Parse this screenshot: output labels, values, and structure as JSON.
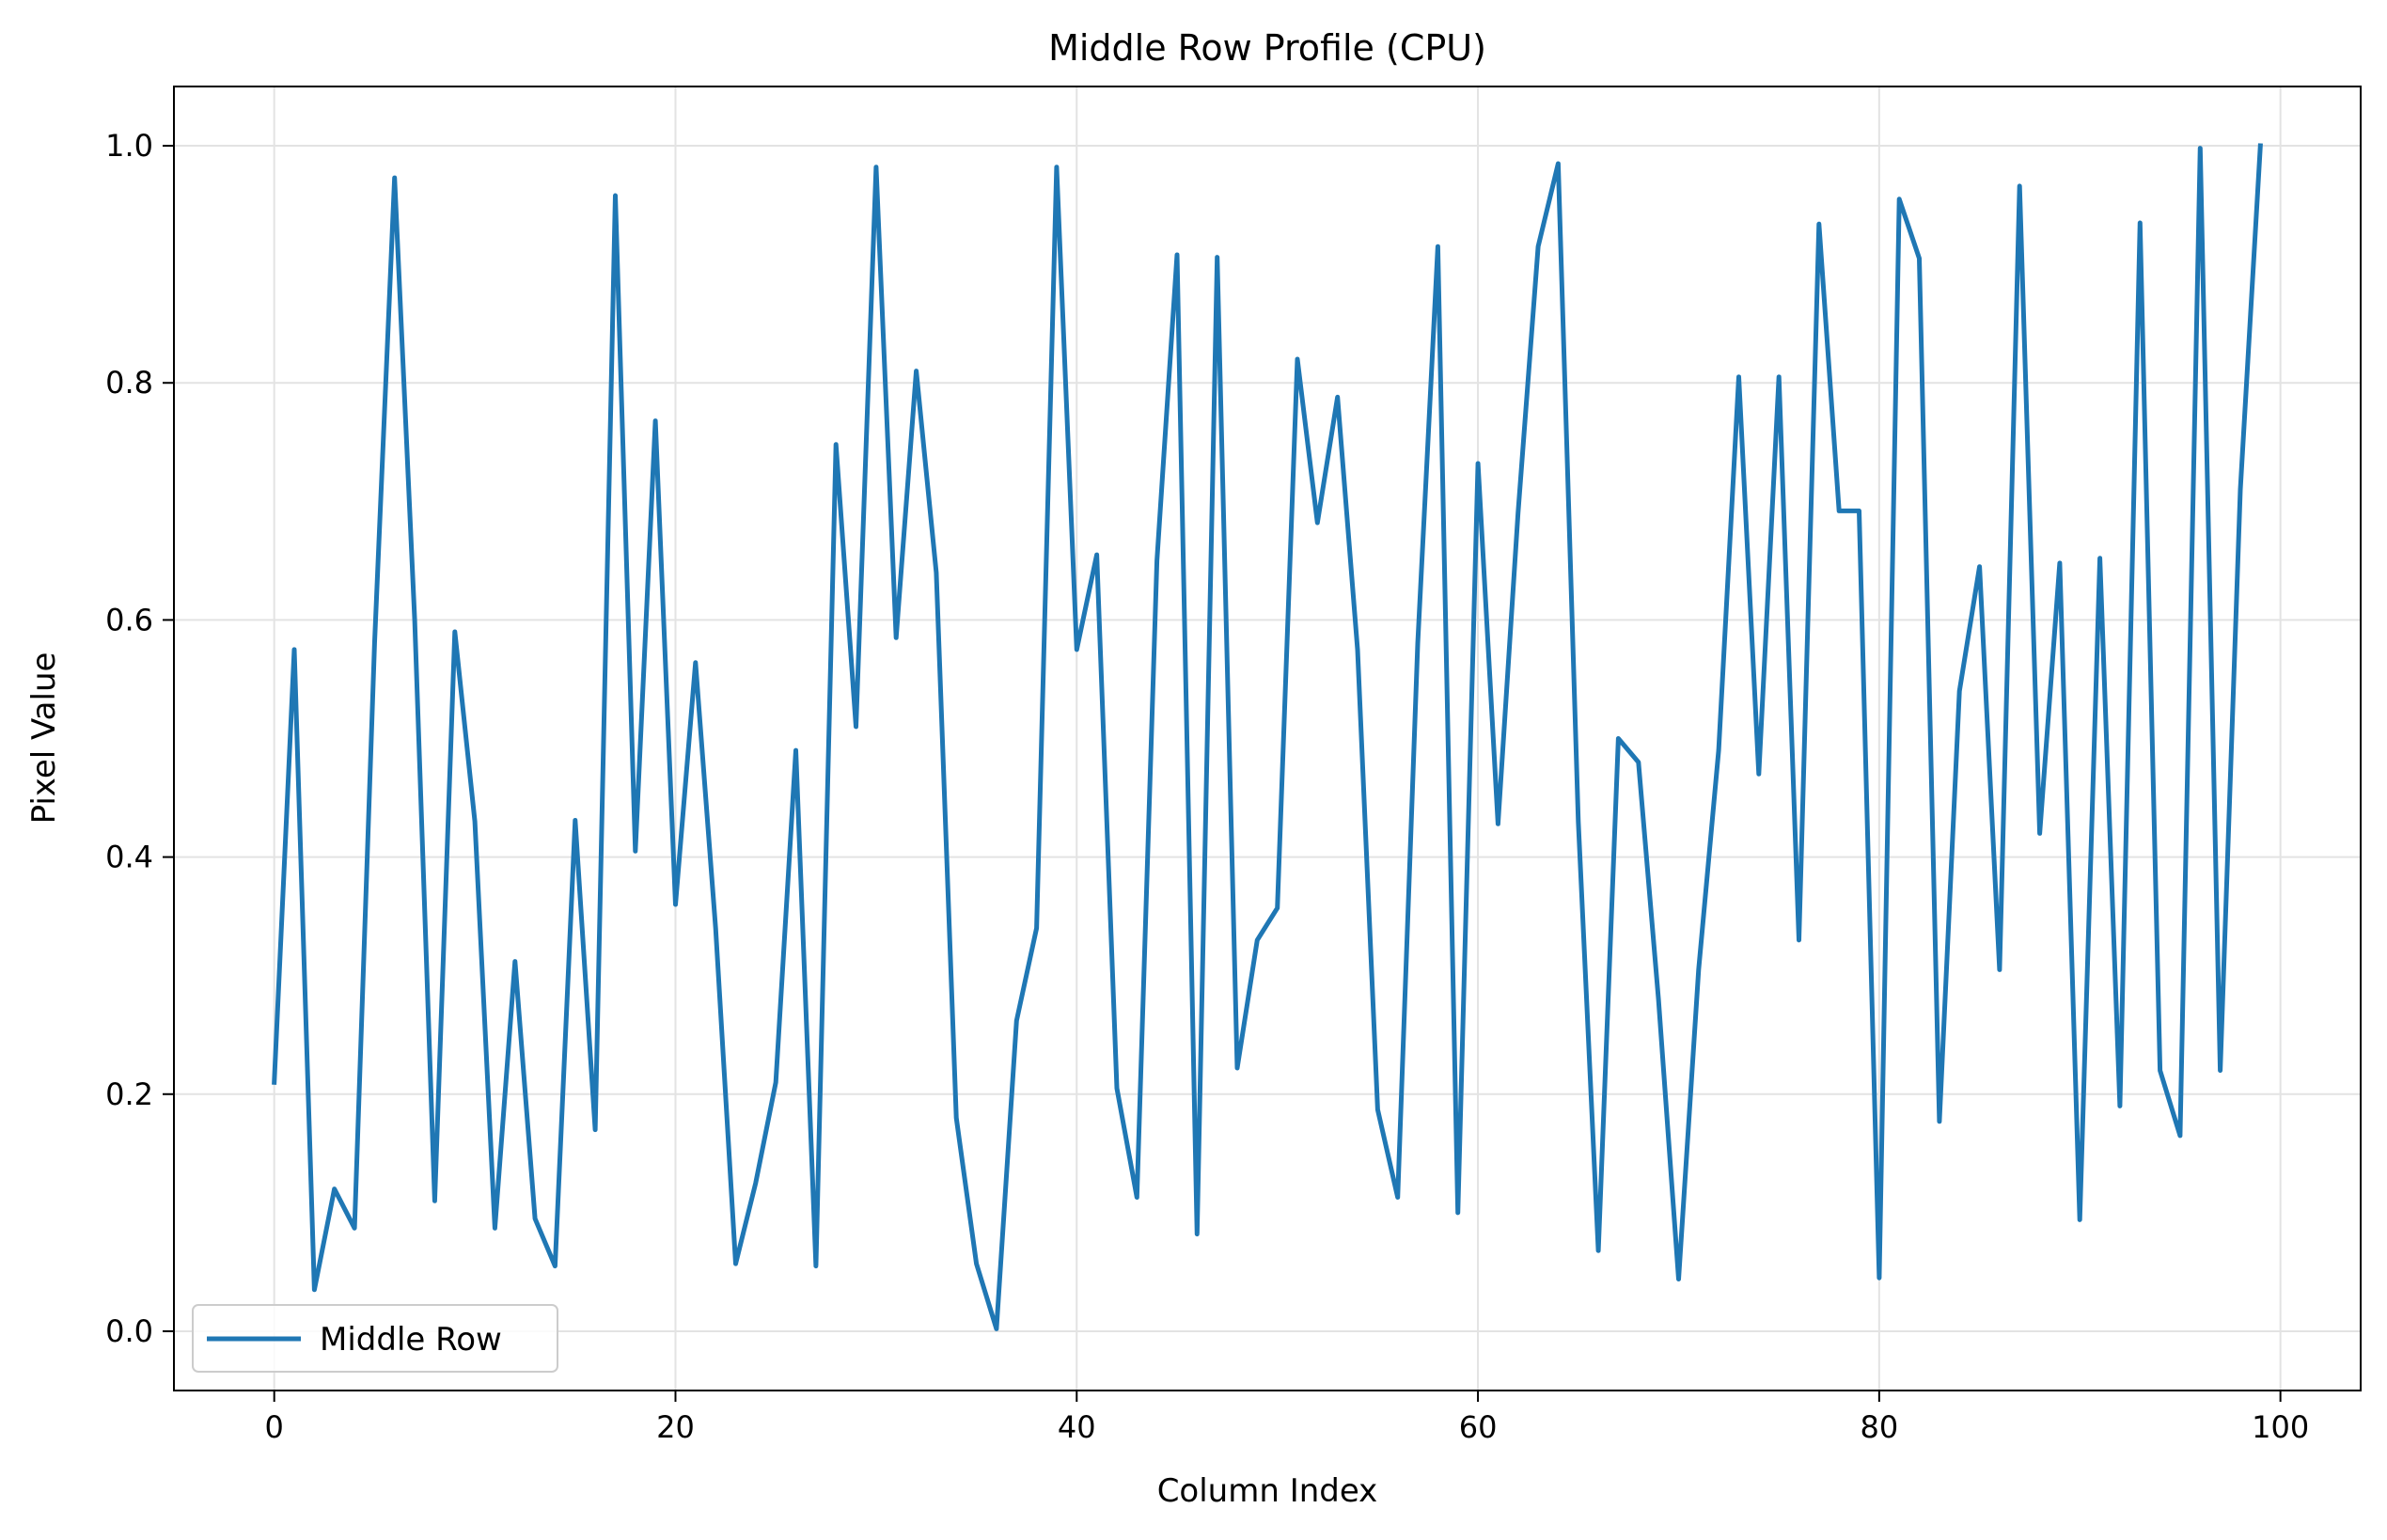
{
  "chart_data": {
    "type": "line",
    "title": "Middle Row Profile (CPU)",
    "xlabel": "Column Index",
    "ylabel": "Pixel Value",
    "xlim": [
      -5,
      104
    ],
    "ylim": [
      -0.05,
      1.05
    ],
    "xticks": [
      0,
      20,
      40,
      60,
      80,
      100
    ],
    "xtick_labels": [
      "0",
      "20",
      "40",
      "60",
      "80",
      "100"
    ],
    "yticks": [
      0.0,
      0.2,
      0.4,
      0.6,
      0.8,
      1.0
    ],
    "ytick_labels": [
      "0.0",
      "0.2",
      "0.4",
      "0.6",
      "0.8",
      "1.0"
    ],
    "grid": true,
    "legend_position": "lower-left",
    "series": [
      {
        "name": "Middle Row",
        "color": "#1f77b4",
        "x": [
          0,
          1,
          2,
          3,
          4,
          5,
          6,
          7,
          8,
          9,
          10,
          11,
          12,
          13,
          14,
          15,
          16,
          17,
          18,
          19,
          20,
          21,
          22,
          23,
          24,
          25,
          26,
          27,
          28,
          29,
          30,
          31,
          32,
          33,
          34,
          35,
          36,
          37,
          38,
          39,
          40,
          41,
          42,
          43,
          44,
          45,
          46,
          47,
          48,
          49,
          50,
          51,
          52,
          53,
          54,
          55,
          56,
          57,
          58,
          59,
          60,
          61,
          62,
          63,
          64,
          65,
          66,
          67,
          68,
          69,
          70,
          71,
          72,
          73,
          74,
          75,
          76,
          77,
          78,
          79,
          80,
          81,
          82,
          83,
          84,
          85,
          86,
          87,
          88,
          89,
          90,
          91,
          92,
          93,
          94,
          95,
          96,
          97,
          98,
          99
        ],
        "values": [
          0.21,
          0.575,
          0.035,
          0.12,
          0.087,
          0.58,
          0.973,
          0.6,
          0.11,
          0.59,
          0.43,
          0.087,
          0.312,
          0.095,
          0.055,
          0.431,
          0.17,
          0.958,
          0.405,
          0.768,
          0.36,
          0.564,
          0.34,
          0.057,
          0.125,
          0.21,
          0.49,
          0.055,
          0.748,
          0.51,
          0.982,
          0.585,
          0.81,
          0.64,
          0.18,
          0.057,
          0.002,
          0.262,
          0.34,
          0.982,
          0.575,
          0.655,
          0.205,
          0.113,
          0.65,
          0.908,
          0.082,
          0.906,
          0.222,
          0.33,
          0.357,
          0.82,
          0.682,
          0.788,
          0.575,
          0.187,
          0.113,
          0.58,
          0.915,
          0.1,
          0.732,
          0.428,
          0.69,
          0.915,
          0.985,
          0.43,
          0.068,
          0.5,
          0.48,
          0.28,
          0.044,
          0.305,
          0.49,
          0.805,
          0.47,
          0.805,
          0.33,
          0.934,
          0.692,
          0.692,
          0.045,
          0.955,
          0.905,
          0.177,
          0.54,
          0.645,
          0.305,
          0.966,
          0.42,
          0.648,
          0.094,
          0.652,
          0.19,
          0.935,
          0.22,
          0.165,
          0.998,
          0.22,
          0.71,
          1.0
        ]
      }
    ]
  }
}
